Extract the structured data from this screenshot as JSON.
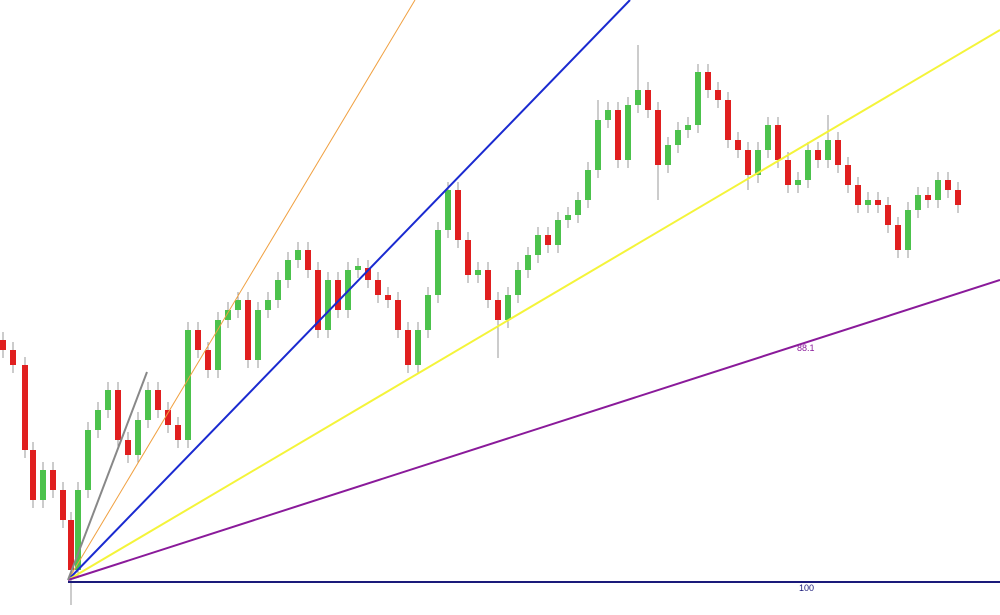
{
  "labels": [
    "88.1",
    "100"
  ]
}
